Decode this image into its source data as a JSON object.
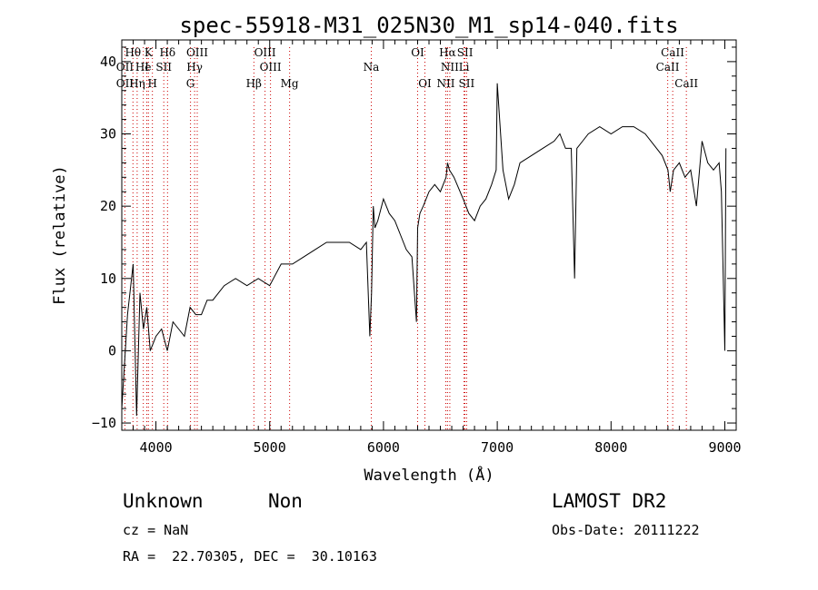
{
  "chart_data": {
    "type": "line",
    "title": "spec-55918-M31_025N30_M1_sp14-040.fits",
    "xlabel": "Wavelength (Å)",
    "ylabel": "Flux (relative)",
    "xlim": [
      3700,
      9100
    ],
    "ylim": [
      -11,
      43
    ],
    "xticks": [
      4000,
      5000,
      6000,
      7000,
      8000,
      9000
    ],
    "yticks": [
      -10,
      0,
      10,
      20,
      30,
      40
    ],
    "grid": false,
    "line_color": "#000000",
    "marker_line_color": "#cc0000",
    "series": [
      {
        "x": [
          3700,
          3750,
          3800,
          3830,
          3860,
          3890,
          3920,
          3950,
          4000,
          4050,
          4100,
          4150,
          4200,
          4250,
          4300,
          4350,
          4400,
          4450,
          4500,
          4600,
          4700,
          4800,
          4900,
          5000,
          5100,
          5200,
          5300,
          5400,
          5500,
          5600,
          5700,
          5800,
          5850,
          5880,
          5895,
          5910,
          5925,
          5950,
          6000,
          6050,
          6100,
          6150,
          6200,
          6250,
          6290,
          6300,
          6320,
          6350,
          6400,
          6450,
          6500,
          6550,
          6563,
          6580,
          6620,
          6700,
          6750,
          6800,
          6850,
          6900,
          6950,
          6990,
          7000,
          7050,
          7100,
          7150,
          7200,
          7300,
          7400,
          7500,
          7550,
          7600,
          7650,
          7680,
          7700,
          7750,
          7800,
          7900,
          8000,
          8100,
          8200,
          8300,
          8400,
          8450,
          8500,
          8520,
          8550,
          8600,
          8650,
          8700,
          8750,
          8800,
          8850,
          8900,
          8950,
          8970,
          9000,
          9010
        ],
        "y": [
          -8,
          5,
          12,
          -9,
          8,
          3,
          6,
          0,
          2,
          3,
          0,
          4,
          3,
          2,
          6,
          5,
          5,
          7,
          7,
          9,
          10,
          9,
          10,
          9,
          12,
          12,
          13,
          14,
          15,
          15,
          15,
          14,
          15,
          2,
          8,
          20,
          17,
          18,
          21,
          19,
          18,
          16,
          14,
          13,
          4,
          17,
          19,
          20,
          22,
          23,
          22,
          24,
          26,
          25,
          24,
          21,
          19,
          18,
          20,
          21,
          23,
          25,
          37,
          25,
          21,
          23,
          26,
          27,
          28,
          29,
          30,
          28,
          28,
          10,
          28,
          29,
          30,
          31,
          30,
          31,
          31,
          30,
          28,
          27,
          25,
          22,
          25,
          26,
          24,
          25,
          20,
          29,
          26,
          25,
          26,
          22,
          0,
          28
        ]
      }
    ],
    "line_markers": [
      {
        "label": "Hθ",
        "x": 3798,
        "row": 1
      },
      {
        "label": "K",
        "x": 3934,
        "row": 1
      },
      {
        "label": "Hδ",
        "x": 4102,
        "row": 1
      },
      {
        "label": "OIII",
        "x": 4363,
        "row": 1
      },
      {
        "label": "OIII",
        "x": 4959,
        "row": 1
      },
      {
        "label": "OI",
        "x": 6300,
        "row": 1
      },
      {
        "label": "Hα",
        "x": 6563,
        "row": 1
      },
      {
        "label": "SII",
        "x": 6716,
        "row": 1
      },
      {
        "label": "CaII",
        "x": 8542,
        "row": 1
      },
      {
        "label": "OII",
        "x": 3727,
        "row": 2
      },
      {
        "label": "He",
        "x": 3889,
        "row": 2
      },
      {
        "label": "I",
        "x": 3920,
        "row": 2
      },
      {
        "label": "SII",
        "x": 4069,
        "row": 2
      },
      {
        "label": "Hγ",
        "x": 4340,
        "row": 2
      },
      {
        "label": "OIII",
        "x": 5007,
        "row": 2
      },
      {
        "label": "Na",
        "x": 5893,
        "row": 2
      },
      {
        "label": "NII",
        "x": 6583,
        "row": 2
      },
      {
        "label": "Li",
        "x": 6708,
        "row": 2
      },
      {
        "label": "CaII",
        "x": 8498,
        "row": 2
      },
      {
        "label": "OII",
        "x": 3727,
        "row": 3
      },
      {
        "label": "Hη",
        "x": 3835,
        "row": 3
      },
      {
        "label": "H",
        "x": 3969,
        "row": 3
      },
      {
        "label": "G",
        "x": 4304,
        "row": 3
      },
      {
        "label": "Hβ",
        "x": 4861,
        "row": 3
      },
      {
        "label": "Mg",
        "x": 5175,
        "row": 3
      },
      {
        "label": "OI",
        "x": 6364,
        "row": 3
      },
      {
        "label": "NII",
        "x": 6548,
        "row": 3
      },
      {
        "label": "SII",
        "x": 6731,
        "row": 3
      },
      {
        "label": "CaII",
        "x": 8662,
        "row": 3
      }
    ],
    "dotted_lines_x": [
      3727,
      3798,
      3835,
      3889,
      3920,
      3934,
      3969,
      4069,
      4102,
      4304,
      4340,
      4363,
      4861,
      4959,
      5007,
      5175,
      5893,
      6300,
      6364,
      6548,
      6563,
      6583,
      6708,
      6716,
      6731,
      8498,
      8542,
      8662
    ]
  },
  "info": {
    "class_text": "Unknown",
    "subclass_text": "Non",
    "survey_text": "LAMOST DR2",
    "cz_text": "cz = NaN",
    "obs_date_text": "Obs-Date: 20111222",
    "radec_text": "RA =  22.70305, DEC =  30.10163"
  }
}
